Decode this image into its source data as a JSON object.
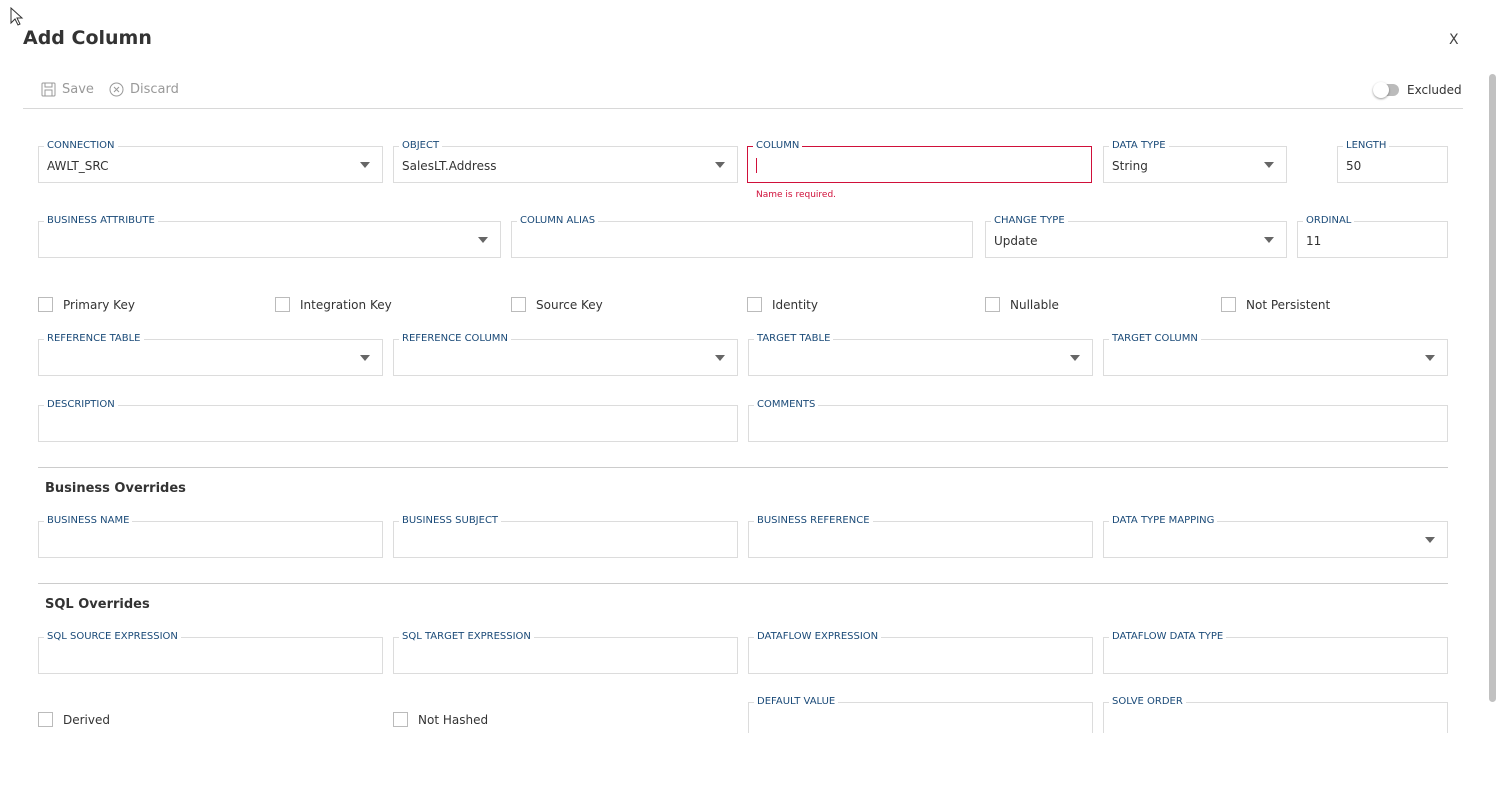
{
  "dialog": {
    "title": "Add Column",
    "close_label": "X"
  },
  "toolbar": {
    "save_label": "Save",
    "discard_label": "Discard",
    "excluded_label": "Excluded",
    "excluded_on": false
  },
  "fields": [
    {
      "id": "connection",
      "label": "CONNECTION",
      "value": "AWLT_SRC",
      "dropdown": true
    },
    {
      "id": "object",
      "label": "OBJECT",
      "value": "SalesLT.Address",
      "dropdown": true
    },
    {
      "id": "column",
      "label": "COLUMN",
      "value": "",
      "error": "Name is required."
    },
    {
      "id": "data-type",
      "label": "DATA TYPE",
      "value": "String",
      "dropdown": true
    },
    {
      "id": "length",
      "label": "LENGTH",
      "value": "50"
    },
    {
      "id": "business-attribute",
      "label": "BUSINESS ATTRIBUTE",
      "value": "",
      "dropdown": true
    },
    {
      "id": "column-alias",
      "label": "COLUMN ALIAS",
      "value": ""
    },
    {
      "id": "change-type",
      "label": "CHANGE TYPE",
      "value": "Update",
      "dropdown": true
    },
    {
      "id": "ordinal",
      "label": "ORDINAL",
      "value": "11"
    },
    {
      "id": "reference-table",
      "label": "REFERENCE TABLE",
      "value": "",
      "dropdown": true
    },
    {
      "id": "reference-column",
      "label": "REFERENCE COLUMN",
      "value": "",
      "dropdown": true
    },
    {
      "id": "target-table",
      "label": "TARGET TABLE",
      "value": "",
      "dropdown": true
    },
    {
      "id": "target-column",
      "label": "TARGET COLUMN",
      "value": "",
      "dropdown": true
    },
    {
      "id": "description",
      "label": "DESCRIPTION",
      "value": ""
    },
    {
      "id": "comments",
      "label": "COMMENTS",
      "value": ""
    },
    {
      "id": "business-name",
      "label": "BUSINESS NAME",
      "value": ""
    },
    {
      "id": "business-subject",
      "label": "BUSINESS SUBJECT",
      "value": ""
    },
    {
      "id": "business-reference",
      "label": "BUSINESS REFERENCE",
      "value": ""
    },
    {
      "id": "data-type-mapping",
      "label": "DATA TYPE MAPPING",
      "value": "",
      "dropdown": true
    },
    {
      "id": "sql-source-expression",
      "label": "SQL SOURCE EXPRESSION",
      "value": ""
    },
    {
      "id": "sql-target-expression",
      "label": "SQL TARGET EXPRESSION",
      "value": ""
    },
    {
      "id": "dataflow-expression",
      "label": "DATAFLOW EXPRESSION",
      "value": ""
    },
    {
      "id": "dataflow-data-type",
      "label": "DATAFLOW DATA TYPE",
      "value": ""
    },
    {
      "id": "default-value",
      "label": "DEFAULT VALUE",
      "value": ""
    },
    {
      "id": "solve-order",
      "label": "SOLVE ORDER",
      "value": ""
    }
  ],
  "checkboxes": [
    {
      "label": "Primary Key",
      "checked": false
    },
    {
      "label": "Integration Key",
      "checked": false
    },
    {
      "label": "Source Key",
      "checked": false
    },
    {
      "label": "Identity",
      "checked": false
    },
    {
      "label": "Nullable",
      "checked": false
    },
    {
      "label": "Not Persistent",
      "checked": false
    },
    {
      "label": "Derived",
      "checked": false
    },
    {
      "label": "Not Hashed",
      "checked": false
    }
  ],
  "sections": {
    "business_overrides": "Business Overrides",
    "sql_overrides": "SQL Overrides"
  },
  "colors": {
    "label": "#1a4a78",
    "error": "#d0103a",
    "border": "#dcdcdc"
  }
}
